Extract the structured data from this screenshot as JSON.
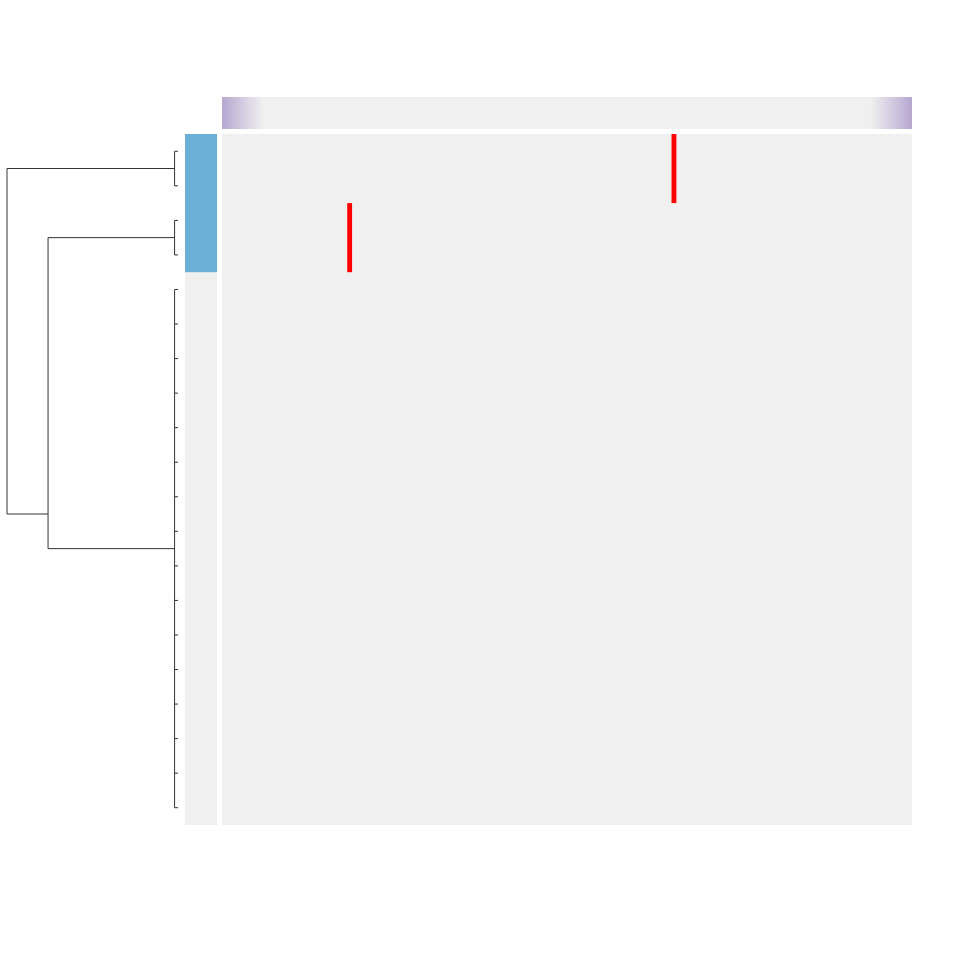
{
  "chart_data": {
    "type": "heatmap",
    "title": "",
    "n_rows": 20,
    "n_cols": 100,
    "colors": {
      "background": "#f0f0f0",
      "mark": "#ff0000",
      "row_annotation": "#6baed6",
      "col_annotation_edge": "#b7a7d1",
      "col_annotation_mid": "#f0f0f0",
      "dendrogram": "#333333"
    },
    "row_annotation": {
      "highlighted_rows": [
        0,
        1,
        2,
        3
      ]
    },
    "marks": [
      {
        "row": 0,
        "col": 65,
        "row_span": 2
      },
      {
        "row": 2,
        "col": 18,
        "row_span": 2
      }
    ],
    "row_dendrogram": {
      "clusters": [
        {
          "rows": [
            0,
            1
          ],
          "height": 0.02
        },
        {
          "rows": [
            2,
            3
          ],
          "height": 0.02
        },
        {
          "rows": [
            4,
            19
          ],
          "height": 0.02
        }
      ],
      "merges": [
        {
          "left_rows": [
            2,
            3
          ],
          "right_rows": [
            4,
            19
          ],
          "height": 0.76
        },
        {
          "left_rows": [
            0,
            1
          ],
          "right_rows": [
            2,
            19
          ],
          "height": 1.0
        }
      ]
    }
  }
}
